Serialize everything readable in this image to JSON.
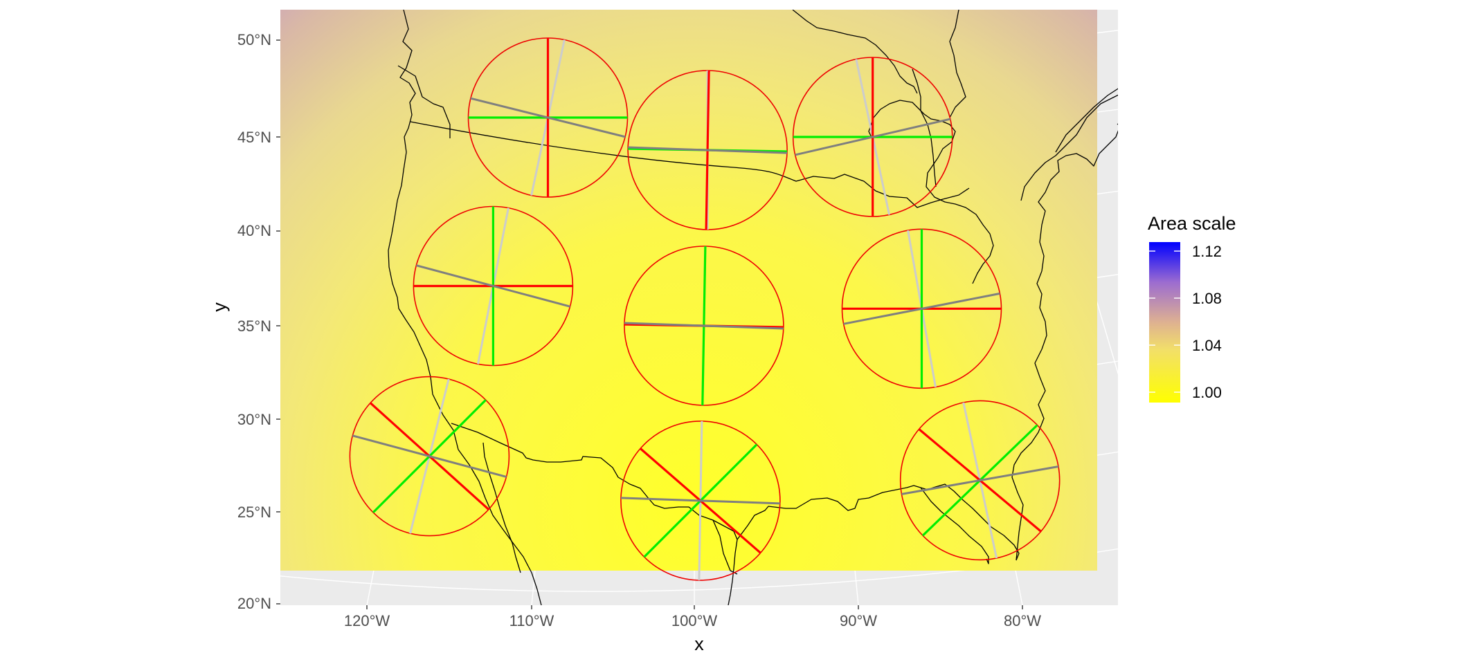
{
  "chart_data": {
    "type": "map",
    "xlabel": "x",
    "ylabel": "y",
    "x_ticks": [
      "120°W",
      "110°W",
      "100°W",
      "90°W",
      "80°W"
    ],
    "y_ticks": [
      "20°N",
      "25°N",
      "30°N",
      "35°N",
      "40°N",
      "45°N",
      "50°N"
    ],
    "legend": {
      "title": "Area scale",
      "labels": [
        "1.12",
        "1.08",
        "1.04",
        "1.00"
      ],
      "range": [
        0.995,
        1.125
      ],
      "colors": {
        "low": "#ffff00",
        "mid": "#d9a7a0",
        "high": "#0000ff"
      }
    },
    "indicatrices": [
      {
        "lon": -112.5,
        "lat": 46.0,
        "red_angle": 90,
        "green_angle": 0,
        "gray_angle": -14,
        "silver_angle": 78
      },
      {
        "lon": -98.9,
        "lat": 44.3,
        "red_angle": 89,
        "green_angle": -1,
        "gray_angle": -2,
        "silver_angle": 90
      },
      {
        "lon": -85.0,
        "lat": 45.0,
        "red_angle": 90,
        "green_angle": 0,
        "gray_angle": 13,
        "silver_angle": 102
      },
      {
        "lon": -115.1,
        "lat": 37.1,
        "red_angle": 0,
        "green_angle": 90,
        "gray_angle": -15,
        "silver_angle": 79
      },
      {
        "lon": -99.3,
        "lat": 35.0,
        "red_angle": -1,
        "green_angle": 89,
        "gray_angle": -2,
        "silver_angle": 89
      },
      {
        "lon": -83.2,
        "lat": 35.9,
        "red_angle": 0,
        "green_angle": 90,
        "gray_angle": 11,
        "silver_angle": 100
      },
      {
        "lon": -117.7,
        "lat": 28.0,
        "red_angle": -42,
        "green_angle": 45,
        "gray_angle": -15,
        "silver_angle": 76
      },
      {
        "lon": -99.6,
        "lat": 25.6,
        "red_angle": -41,
        "green_angle": 45,
        "gray_angle": -2,
        "silver_angle": 89
      },
      {
        "lon": -81.2,
        "lat": 26.7,
        "red_angle": -40,
        "green_angle": 44,
        "gray_angle": 10,
        "silver_angle": 102
      }
    ],
    "colors": {
      "panel_background": "#ebebeb",
      "grid": "#ffffff",
      "circle": "#ee0000",
      "red_axis": "#ff0000",
      "green_axis": "#00ee00",
      "gray_axis": "#7f7f7f",
      "silver_axis": "#cccccc",
      "coastline": "#000000"
    }
  }
}
